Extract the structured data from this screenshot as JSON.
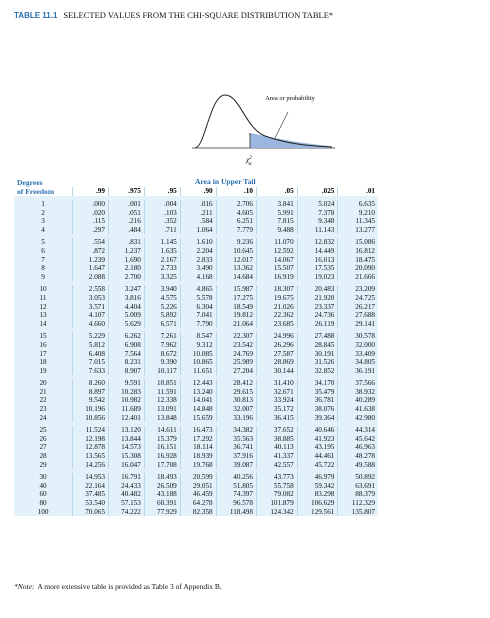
{
  "title": {
    "label": "TABLE 11.1",
    "text": "SELECTED VALUES FROM THE CHI-SQUARE DISTRIBUTION TABLE*"
  },
  "figure": {
    "area_label": "Area or probability",
    "x_label": {
      "base": "χ",
      "sup": "2",
      "sub": "α"
    }
  },
  "table": {
    "df_header": [
      "Degrees",
      "of Freedom"
    ],
    "spanner": "Area in Upper Tail",
    "columns": [
      ".99",
      ".975",
      ".95",
      ".90",
      ".10",
      ".05",
      ".025",
      ".01"
    ],
    "groups": [
      [
        [
          "1",
          ".000",
          ".001",
          ".004",
          ".016",
          "2.706",
          "3.841",
          "5.024",
          "6.635"
        ],
        [
          "2",
          ".020",
          ".051",
          ".103",
          ".211",
          "4.605",
          "5.991",
          "7.378",
          "9.210"
        ],
        [
          "3",
          ".115",
          ".216",
          ".352",
          ".584",
          "6.251",
          "7.815",
          "9.348",
          "11.345"
        ],
        [
          "4",
          ".297",
          ".484",
          ".711",
          "1.064",
          "7.779",
          "9.488",
          "11.143",
          "13.277"
        ]
      ],
      [
        [
          "5",
          ".554",
          ".831",
          "1.145",
          "1.610",
          "9.236",
          "11.070",
          "12.832",
          "15.086"
        ],
        [
          "6",
          ".872",
          "1.237",
          "1.635",
          "2.204",
          "10.645",
          "12.592",
          "14.449",
          "16.812"
        ],
        [
          "7",
          "1.239",
          "1.690",
          "2.167",
          "2.833",
          "12.017",
          "14.067",
          "16.013",
          "18.475"
        ],
        [
          "8",
          "1.647",
          "2.180",
          "2.733",
          "3.490",
          "13.362",
          "15.507",
          "17.535",
          "20.090"
        ],
        [
          "9",
          "2.088",
          "2.700",
          "3.325",
          "4.168",
          "14.684",
          "16.919",
          "19.023",
          "21.666"
        ]
      ],
      [
        [
          "10",
          "2.558",
          "3.247",
          "3.940",
          "4.865",
          "15.987",
          "18.307",
          "20.483",
          "23.209"
        ],
        [
          "11",
          "3.053",
          "3.816",
          "4.575",
          "5.578",
          "17.275",
          "19.675",
          "21.920",
          "24.725"
        ],
        [
          "12",
          "3.571",
          "4.404",
          "5.226",
          "6.304",
          "18.549",
          "21.026",
          "23.337",
          "26.217"
        ],
        [
          "13",
          "4.107",
          "5.009",
          "5.892",
          "7.041",
          "19.812",
          "22.362",
          "24.736",
          "27.688"
        ],
        [
          "14",
          "4.660",
          "5.629",
          "6.571",
          "7.790",
          "21.064",
          "23.685",
          "26.119",
          "29.141"
        ]
      ],
      [
        [
          "15",
          "5.229",
          "6.262",
          "7.261",
          "8.547",
          "22.307",
          "24.996",
          "27.488",
          "30.578"
        ],
        [
          "16",
          "5.812",
          "6.908",
          "7.962",
          "9.312",
          "23.542",
          "26.296",
          "28.845",
          "32.000"
        ],
        [
          "17",
          "6.408",
          "7.564",
          "8.672",
          "10.085",
          "24.769",
          "27.587",
          "30.191",
          "33.409"
        ],
        [
          "18",
          "7.015",
          "8.231",
          "9.390",
          "10.865",
          "25.989",
          "28.869",
          "31.526",
          "34.805"
        ],
        [
          "19",
          "7.633",
          "8.907",
          "10.117",
          "11.651",
          "27.204",
          "30.144",
          "32.852",
          "36.191"
        ]
      ],
      [
        [
          "20",
          "8.260",
          "9.591",
          "10.851",
          "12.443",
          "28.412",
          "31.410",
          "34.170",
          "37.566"
        ],
        [
          "21",
          "8.897",
          "10.283",
          "11.591",
          "13.240",
          "29.615",
          "32.671",
          "35.479",
          "38.932"
        ],
        [
          "22",
          "9.542",
          "10.982",
          "12.338",
          "14.041",
          "30.813",
          "33.924",
          "36.781",
          "40.289"
        ],
        [
          "23",
          "10.196",
          "11.689",
          "13.091",
          "14.848",
          "32.007",
          "35.172",
          "38.076",
          "41.638"
        ],
        [
          "24",
          "10.856",
          "12.401",
          "13.848",
          "15.659",
          "33.196",
          "36.415",
          "39.364",
          "42.980"
        ]
      ],
      [
        [
          "25",
          "11.524",
          "13.120",
          "14.611",
          "16.473",
          "34.382",
          "37.652",
          "40.646",
          "44.314"
        ],
        [
          "26",
          "12.198",
          "13.844",
          "15.379",
          "17.292",
          "35.563",
          "38.885",
          "41.923",
          "45.642"
        ],
        [
          "27",
          "12.878",
          "14.573",
          "16.151",
          "18.114",
          "36.741",
          "40.113",
          "43.195",
          "46.963"
        ],
        [
          "28",
          "13.565",
          "15.308",
          "16.928",
          "18.939",
          "37.916",
          "41.337",
          "44.461",
          "48.278"
        ],
        [
          "29",
          "14.256",
          "16.047",
          "17.708",
          "19.768",
          "39.087",
          "42.557",
          "45.722",
          "49.588"
        ]
      ],
      [
        [
          "30",
          "14.953",
          "16.791",
          "18.493",
          "20.599",
          "40.256",
          "43.773",
          "46.979",
          "50.892"
        ],
        [
          "40",
          "22.164",
          "24.433",
          "26.509",
          "29.051",
          "51.805",
          "55.758",
          "59.342",
          "63.691"
        ],
        [
          "60",
          "37.485",
          "40.482",
          "43.188",
          "46.459",
          "74.397",
          "79.082",
          "83.298",
          "88.379"
        ],
        [
          "80",
          "53.540",
          "57.153",
          "60.391",
          "64.278",
          "96.578",
          "101.879",
          "106.629",
          "112.329"
        ],
        [
          "100",
          "70.065",
          "74.222",
          "77.929",
          "82.358",
          "118.498",
          "124.342",
          "129.561",
          "135.807"
        ]
      ]
    ]
  },
  "note": {
    "lead": "*Note:",
    "text": "A more extensive table is provided as Table 3 of Appendix B."
  }
}
